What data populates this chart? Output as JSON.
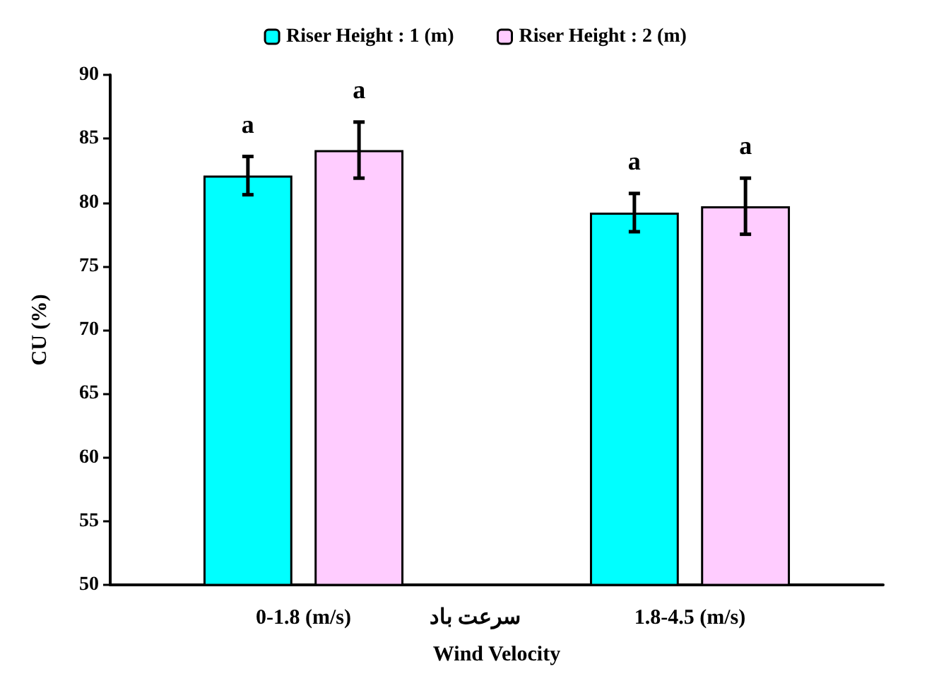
{
  "chart_data": {
    "type": "bar",
    "xlabel": "Wind Velocity",
    "ylabel": "CU (%)",
    "categories": [
      "0-1.8 (m/s)",
      "1.8-4.5 (m/s)"
    ],
    "series": [
      {
        "name": "Riser Height : 1 (m)",
        "color": "#00ffff",
        "values": [
          82.1,
          79.2
        ],
        "errors": [
          1.5,
          1.5
        ],
        "value_labels": [
          "a",
          "a"
        ]
      },
      {
        "name": "Riser Height : 2 (m)",
        "color": "#ffccff",
        "values": [
          84.1,
          79.7
        ],
        "errors": [
          2.2,
          2.2
        ],
        "value_labels": [
          "a",
          "a"
        ]
      }
    ],
    "annotations": [
      "سرعت باد"
    ],
    "ylim": [
      50,
      90
    ],
    "yticks": [
      50,
      55,
      60,
      65,
      70,
      75,
      80,
      85,
      90
    ],
    "grid": false,
    "legend": "top"
  }
}
